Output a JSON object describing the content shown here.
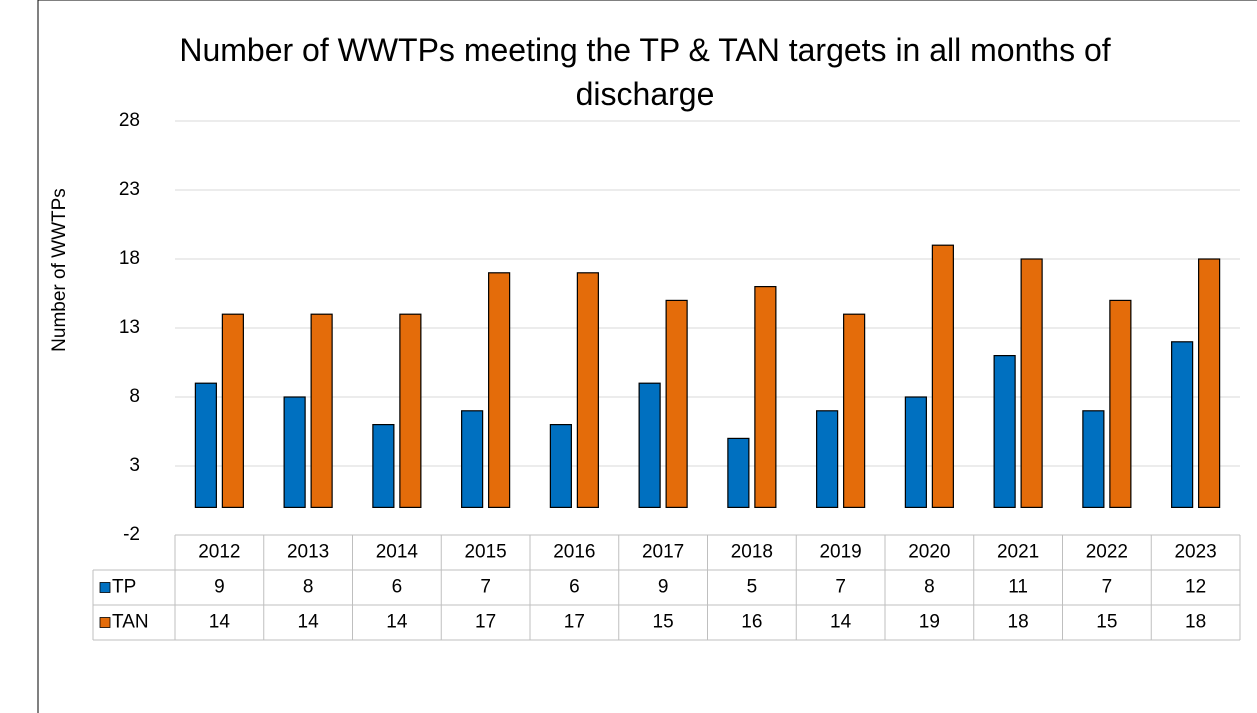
{
  "chart_data": {
    "type": "bar",
    "title": "Number of WWTPs meeting the TP & TAN targets in all months of discharge",
    "y_label": "Number of WWTPs",
    "categories": [
      "2012",
      "2013",
      "2014",
      "2015",
      "2016",
      "2017",
      "2018",
      "2019",
      "2020",
      "2021",
      "2022",
      "2023"
    ],
    "series": [
      {
        "name": "TP",
        "color": "#0070c0",
        "values": [
          9,
          8,
          6,
          7,
          6,
          9,
          5,
          7,
          8,
          11,
          7,
          12
        ]
      },
      {
        "name": "TAN",
        "color": "#e46c0a",
        "values": [
          14,
          14,
          14,
          17,
          17,
          15,
          16,
          14,
          19,
          18,
          15,
          18
        ]
      }
    ],
    "ylim": [
      -2,
      28
    ],
    "yticks": [
      -2,
      3,
      8,
      13,
      18,
      23,
      28
    ],
    "grid": true,
    "data_table": true
  }
}
